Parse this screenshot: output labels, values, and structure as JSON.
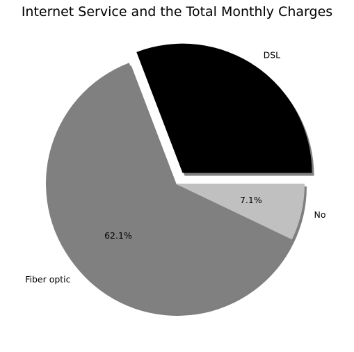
{
  "chart_data": {
    "type": "pie",
    "title": "Internet Service and the Total Monthly Charges",
    "slices": [
      {
        "label": "DSL",
        "value": 30.8,
        "pct_label": "",
        "color": "#000000",
        "shadow_color": "#7f7f7f",
        "explode": true
      },
      {
        "label": "Fiber optic",
        "value": 62.1,
        "pct_label": "62.1%",
        "color": "#808080",
        "shadow_color": "#7f7f7f",
        "explode": false
      },
      {
        "label": "No",
        "value": 7.1,
        "pct_label": "7.1%",
        "color": "#c0c0c0",
        "shadow_color": "#7f7f7f",
        "explode": false
      }
    ],
    "start_angle_deg": 0,
    "direction": "counterclockwise",
    "shadow": true,
    "legend": "none"
  }
}
